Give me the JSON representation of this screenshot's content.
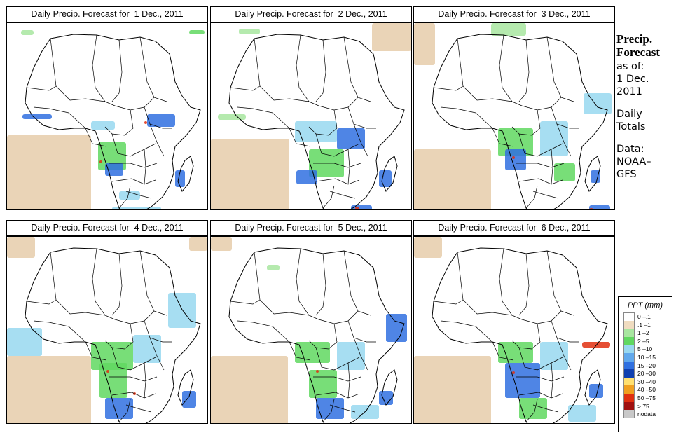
{
  "panels": [
    {
      "title": "Daily Precip. Forecast for  1 Dec., 2011"
    },
    {
      "title": "Daily Precip. Forecast for  2 Dec., 2011"
    },
    {
      "title": "Daily Precip. Forecast for  3 Dec., 2011"
    },
    {
      "title": "Daily Precip. Forecast for  4 Dec., 2011"
    },
    {
      "title": "Daily Precip. Forecast for  5 Dec., 2011"
    },
    {
      "title": "Daily Precip. Forecast for  6 Dec., 2011"
    }
  ],
  "side_info": {
    "line1": "Precip.",
    "line2": "Forecast",
    "line3": "as of:",
    "line4": "1 Dec.",
    "line5": "2011",
    "line6": "Daily",
    "line7": "Totals",
    "line8": "Data:",
    "line9": "NOAA–",
    "line10": "GFS"
  },
  "legend": {
    "title": "PPT (mm)",
    "items": [
      {
        "label": "0 –.1",
        "color": "#ffffff"
      },
      {
        "label": ".1 –1",
        "color": "#f0dcc0"
      },
      {
        "label": "1 –2",
        "color": "#a8e6a0"
      },
      {
        "label": "2 –5",
        "color": "#60d860"
      },
      {
        "label": "5 –10",
        "color": "#98d8f0"
      },
      {
        "label": "10 –15",
        "color": "#60a8ec"
      },
      {
        "label": "15 –20",
        "color": "#3070e0"
      },
      {
        "label": "20 –30",
        "color": "#1040b0"
      },
      {
        "label": "30 –40",
        "color": "#ffe070"
      },
      {
        "label": "40 –50",
        "color": "#f0a020"
      },
      {
        "label": "50 –75",
        "color": "#e03010"
      },
      {
        "label": "> 75",
        "color": "#a01010"
      },
      {
        "label": "nodata",
        "color": "#c8c8c8"
      }
    ]
  },
  "colors": {
    "ocean_dry": "#e6ccaa",
    "light": "#a8e6a0",
    "green": "#60d860",
    "cyan": "#98d8f0",
    "blue": "#3070e0",
    "red": "#e03010",
    "yellow": "#ffe070"
  }
}
